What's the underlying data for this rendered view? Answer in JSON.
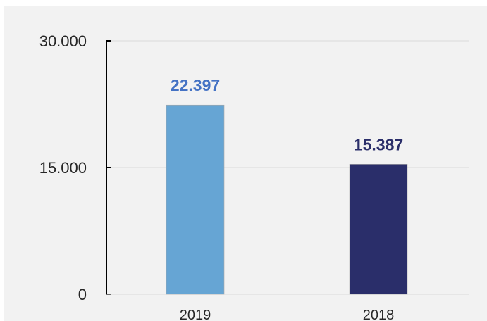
{
  "chart_data": {
    "type": "bar",
    "categories": [
      "2019",
      "2018"
    ],
    "values": [
      22397,
      15387
    ],
    "value_labels": [
      "22.397",
      "15.387"
    ],
    "y_ticks": [
      {
        "value": 0,
        "label": "0"
      },
      {
        "value": 15000,
        "label": "15.000"
      },
      {
        "value": 30000,
        "label": "30.000"
      }
    ],
    "ylim": [
      0,
      30000
    ],
    "grid": true,
    "title": "",
    "xlabel": "",
    "ylabel": "",
    "bar_colors": [
      "#66a5d4",
      "#2a2e6a"
    ],
    "label_colors": [
      "#4472c4",
      "#2a2e6a"
    ],
    "gridline_color": "#d9d9d9",
    "axis_color": "#000000"
  }
}
